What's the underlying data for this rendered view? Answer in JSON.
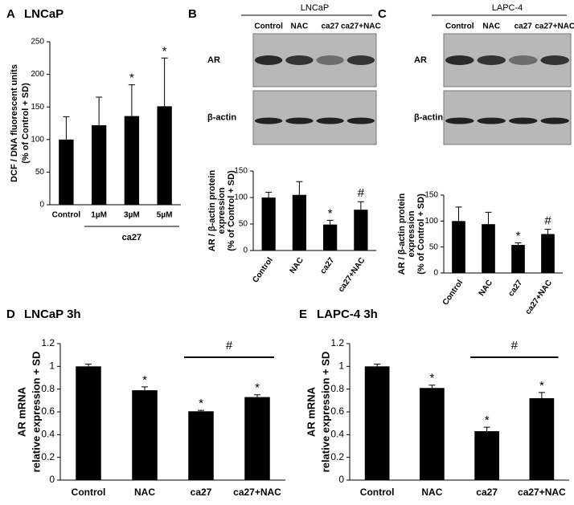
{
  "chart_data": [
    {
      "type": "bar",
      "panel": "A",
      "title": "LNCaP",
      "categories": [
        "Control",
        "1µM",
        "3µM",
        "5µM"
      ],
      "values": [
        100,
        122,
        136,
        151
      ],
      "errors": [
        35,
        43,
        48,
        74
      ],
      "color": "#000000",
      "ylim": [
        0,
        250
      ],
      "yticks": [
        0,
        50,
        100,
        150,
        200,
        250
      ],
      "ylabel": [
        "DCF / DNA fluorescent units",
        "(% of Control + SD)"
      ],
      "annotations": [
        {
          "text": "*",
          "categories": [
            "3µM"
          ]
        },
        {
          "text": "*",
          "categories": [
            "5µM"
          ]
        }
      ],
      "group_label": {
        "text": "ca27",
        "categories": [
          "1µM",
          "5µM"
        ]
      }
    },
    {
      "type": "bar",
      "panel": "B",
      "blot": {
        "title": "LNCaP",
        "lanes": [
          "Control",
          "NAC",
          "ca27",
          "ca27+NAC"
        ],
        "rows": [
          "AR",
          "β-actin"
        ]
      },
      "categories": [
        "Control",
        "NAC",
        "ca27",
        "ca27+NAC"
      ],
      "values": [
        100,
        105,
        49,
        77
      ],
      "errors": [
        10,
        25,
        8,
        15
      ],
      "color": "#000000",
      "ylim": [
        0,
        150
      ],
      "yticks": [
        0,
        50,
        100,
        150
      ],
      "ylabel": [
        "AR / β-actin protein",
        "expression",
        "(% of Control + SD)"
      ],
      "annotations": [
        {
          "text": "*",
          "categories": [
            "ca27"
          ]
        },
        {
          "text": "#",
          "categories": [
            "ca27+NAC"
          ]
        }
      ]
    },
    {
      "type": "bar",
      "panel": "C",
      "blot": {
        "title": "LAPC-4",
        "lanes": [
          "Control",
          "NAC",
          "ca27",
          "ca27+NAC"
        ],
        "rows": [
          "AR",
          "β-actin"
        ]
      },
      "categories": [
        "Control",
        "NAC",
        "ca27",
        "ca27+NAC"
      ],
      "values": [
        100,
        94,
        54,
        75
      ],
      "errors": [
        27,
        23,
        4,
        9
      ],
      "color": "#000000",
      "ylim": [
        0,
        150
      ],
      "yticks": [
        0,
        50,
        100,
        150
      ],
      "ylabel": [
        "AR / β-actin protein",
        "expression",
        "(% of Control + SD)"
      ],
      "annotations": [
        {
          "text": "*",
          "categories": [
            "ca27"
          ]
        },
        {
          "text": "#",
          "categories": [
            "ca27+NAC"
          ]
        }
      ]
    },
    {
      "type": "bar",
      "panel": "D",
      "title": "LNCaP 3h",
      "categories": [
        "Control",
        "NAC",
        "ca27",
        "ca27+NAC"
      ],
      "values": [
        1,
        0.79,
        0.605,
        0.73
      ],
      "errors": [
        0.02,
        0.03,
        0.008,
        0.02
      ],
      "color": "#000000",
      "ylim": [
        0,
        1.2
      ],
      "yticks": [
        0,
        0.2,
        0.4,
        0.6,
        0.8,
        1,
        1.2
      ],
      "ylabel": [
        "AR mRNA",
        "relative expression + SD"
      ],
      "annotations": [
        {
          "text": "*",
          "categories": [
            "NAC"
          ]
        },
        {
          "text": "*",
          "categories": [
            "ca27"
          ]
        },
        {
          "text": "*",
          "categories": [
            "ca27+NAC"
          ]
        },
        {
          "text": "#",
          "categories": [
            "ca27",
            "ca27+NAC"
          ]
        }
      ]
    },
    {
      "type": "bar",
      "panel": "E",
      "title": "LAPC-4 3h",
      "categories": [
        "Control",
        "NAC",
        "ca27",
        "ca27+NAC"
      ],
      "values": [
        1,
        0.81,
        0.43,
        0.72
      ],
      "errors": [
        0.02,
        0.025,
        0.035,
        0.05
      ],
      "color": "#000000",
      "ylim": [
        0,
        1.2
      ],
      "yticks": [
        0,
        0.2,
        0.4,
        0.6,
        0.8,
        1,
        1.2
      ],
      "ylabel": [
        "AR mRNA",
        "relative expression + SD"
      ],
      "annotations": [
        {
          "text": "*",
          "categories": [
            "NAC"
          ]
        },
        {
          "text": "*",
          "categories": [
            "ca27"
          ]
        },
        {
          "text": "*",
          "categories": [
            "ca27+NAC"
          ]
        },
        {
          "text": "#",
          "categories": [
            "ca27",
            "ca27+NAC"
          ]
        }
      ]
    }
  ]
}
